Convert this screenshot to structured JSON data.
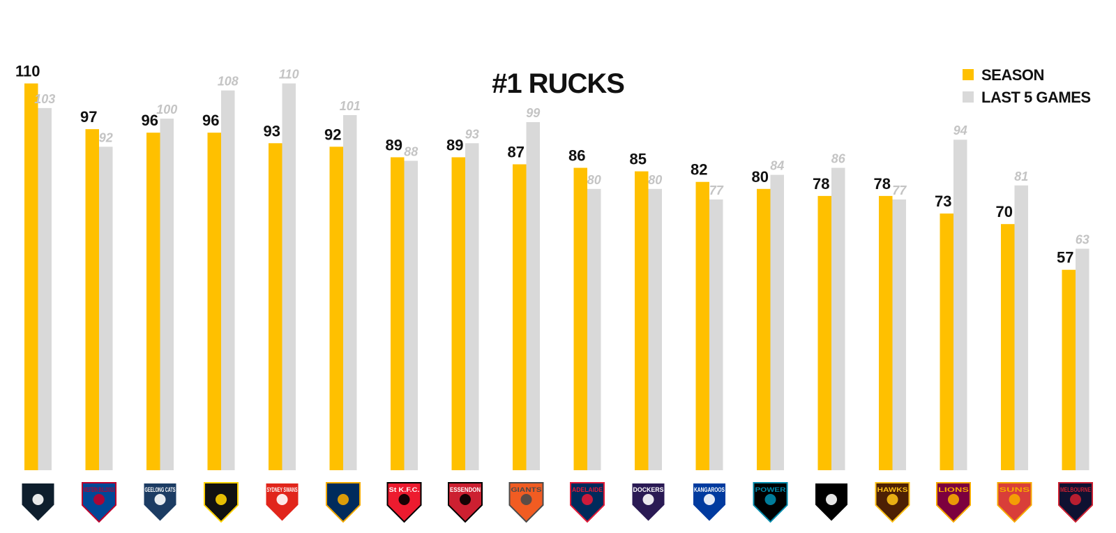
{
  "chart_data": {
    "type": "bar",
    "title": "#1 RUCKS",
    "categories": [
      "Carlton",
      "Western Bulldogs",
      "Geelong Cats",
      "Richmond",
      "Sydney Swans",
      "West Coast Eagles",
      "St Kilda",
      "Essendon",
      "GWS Giants",
      "Adelaide Crows",
      "Fremantle Dockers",
      "North Melbourne Kangaroos",
      "Port Adelaide Power",
      "Collingwood",
      "Hawthorn Hawks",
      "Brisbane Lions",
      "Gold Coast Suns",
      "Melbourne"
    ],
    "series": [
      {
        "name": "SEASON",
        "color": "#FFC000",
        "values": [
          110,
          97,
          96,
          96,
          93,
          92,
          89,
          89,
          87,
          86,
          85,
          82,
          80,
          78,
          78,
          73,
          70,
          57
        ]
      },
      {
        "name": "LAST 5 GAMES",
        "color": "#D9D9D9",
        "values": [
          103,
          92,
          100,
          108,
          110,
          101,
          88,
          93,
          99,
          80,
          80,
          77,
          84,
          86,
          77,
          94,
          81,
          63
        ]
      }
    ],
    "legend": {
      "position": "top-right"
    },
    "grid": false,
    "xlabel": "",
    "ylabel": ""
  },
  "logos": [
    {
      "icon": "carlton-logo-icon",
      "text": "",
      "colors": [
        "#0e1e2d",
        "#ffffff"
      ]
    },
    {
      "icon": "western-bulldogs-logo-icon",
      "text": "WESTERN BULLDOGS",
      "colors": [
        "#014896",
        "#bd002b"
      ]
    },
    {
      "icon": "geelong-logo-icon",
      "text": "GEELONG CATS",
      "colors": [
        "#1c3c63",
        "#ffffff"
      ]
    },
    {
      "icon": "richmond-logo-icon",
      "text": "",
      "colors": [
        "#111111",
        "#fed102"
      ]
    },
    {
      "icon": "sydney-logo-icon",
      "text": "SYDNEY SWANS",
      "colors": [
        "#e1251b",
        "#ffffff"
      ]
    },
    {
      "icon": "west-coast-logo-icon",
      "text": "",
      "colors": [
        "#002b5c",
        "#f2a900"
      ]
    },
    {
      "icon": "st-kilda-logo-icon",
      "text": "St K.F.C.",
      "colors": [
        "#ed1b2f",
        "#000000"
      ]
    },
    {
      "icon": "essendon-logo-icon",
      "text": "ESSENDON",
      "colors": [
        "#cc2031",
        "#000000"
      ]
    },
    {
      "icon": "gws-logo-icon",
      "text": "GIANTS",
      "colors": [
        "#f15c22",
        "#4a4a4a"
      ]
    },
    {
      "icon": "adelaide-logo-icon",
      "text": "ADELAIDE",
      "colors": [
        "#002b5c",
        "#e21937"
      ]
    },
    {
      "icon": "fremantle-logo-icon",
      "text": "DOCKERS",
      "colors": [
        "#2a1a54",
        "#ffffff"
      ]
    },
    {
      "icon": "north-melbourne-logo-icon",
      "text": "KANGAROOS",
      "colors": [
        "#013b9f",
        "#ffffff"
      ]
    },
    {
      "icon": "port-adelaide-logo-icon",
      "text": "POWER",
      "colors": [
        "#000000",
        "#008aab"
      ]
    },
    {
      "icon": "collingwood-logo-icon",
      "text": "",
      "colors": [
        "#000000",
        "#ffffff"
      ]
    },
    {
      "icon": "hawthorn-logo-icon",
      "text": "HAWKS",
      "colors": [
        "#4d2004",
        "#fbbf15"
      ]
    },
    {
      "icon": "brisbane-logo-icon",
      "text": "LIONS",
      "colors": [
        "#7c003e",
        "#f6a800"
      ]
    },
    {
      "icon": "gold-coast-logo-icon",
      "text": "SUNS",
      "colors": [
        "#d93e39",
        "#f6a800"
      ]
    },
    {
      "icon": "melbourne-logo-icon",
      "text": "MELBOURNE",
      "colors": [
        "#0f1131",
        "#cc2031"
      ]
    }
  ]
}
